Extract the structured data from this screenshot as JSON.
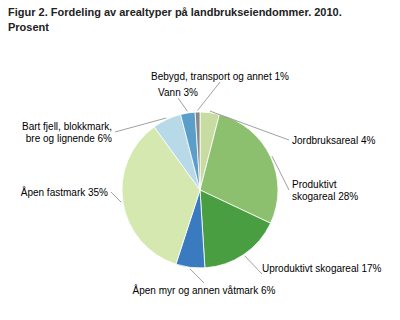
{
  "chart_data": {
    "type": "pie",
    "title": "Figur 2. Fordeling av arealtyper på landbrukseiendommer. 2010.",
    "subtitle": "Prosent",
    "categories": [
      "Jordbruksareal 4%",
      "Produktivt\nskogareal 28%",
      "Uproduktivt skogareal 17%",
      "Åpen myr og annen våtmark 6%",
      "Åpen fastmark 35%",
      "Bart fjell, blokkmark,\nbre og lignende 6%",
      "Vann 3%",
      "Bebygd, transport og annet 1%"
    ],
    "values": [
      4,
      28,
      17,
      6,
      35,
      6,
      3,
      1
    ],
    "colors": [
      "#c8dba0",
      "#8dc06e",
      "#4a9e42",
      "#3a7abf",
      "#d4e8b0",
      "#b8d9e8",
      "#5b9ec9",
      "#888888"
    ]
  }
}
